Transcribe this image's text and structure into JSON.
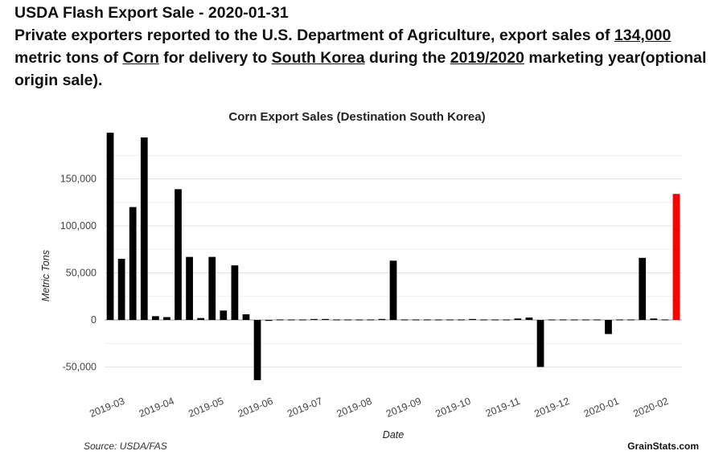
{
  "headline": {
    "line1": "USDA Flash Export Sale - 2020-01-31",
    "text_a": "Private exporters reported to the U.S. Department of Agriculture, export sales of ",
    "amount": "134,000",
    "text_b": " metric tons of ",
    "commodity": "Corn",
    "text_c": " for delivery to ",
    "destination": "South Korea",
    "text_d": " during the ",
    "marketing_year": "2019/2020",
    "text_e": " marketing year(optional origin sale)."
  },
  "footer": {
    "source": "Source: USDA/FAS",
    "brand": "GrainStats.com"
  },
  "chart_data": {
    "type": "bar",
    "title": "Corn Export Sales (Destination South Korea)",
    "xlabel": "Date",
    "ylabel": "Metric Tons",
    "ylim": [
      -65000,
      200000
    ],
    "yticks": [
      -50000,
      0,
      50000,
      100000,
      150000
    ],
    "ytick_labels": [
      "-50,000",
      "0",
      "50,000",
      "100,000",
      "150,000"
    ],
    "x_tick_labels": [
      "2019-03",
      "2019-04",
      "2019-05",
      "2019-06",
      "2019-07",
      "2019-08",
      "2019-09",
      "2019-10",
      "2019-11",
      "2019-12",
      "2020-01",
      "2020-02"
    ],
    "bar_color": "#000000",
    "highlight_color": "#ff0000",
    "highlight_index": 50,
    "values": [
      199000,
      65000,
      120000,
      194000,
      4000,
      3000,
      139000,
      67000,
      2000,
      67000,
      10000,
      58000,
      6000,
      -64000,
      -1000,
      500,
      500,
      500,
      1000,
      1000,
      500,
      500,
      500,
      500,
      1000,
      63000,
      500,
      500,
      500,
      500,
      500,
      500,
      1000,
      500,
      500,
      500,
      1500,
      2500,
      -50000,
      500,
      500,
      500,
      500,
      500,
      -15000,
      500,
      500,
      66000,
      1500,
      500,
      134000
    ]
  }
}
